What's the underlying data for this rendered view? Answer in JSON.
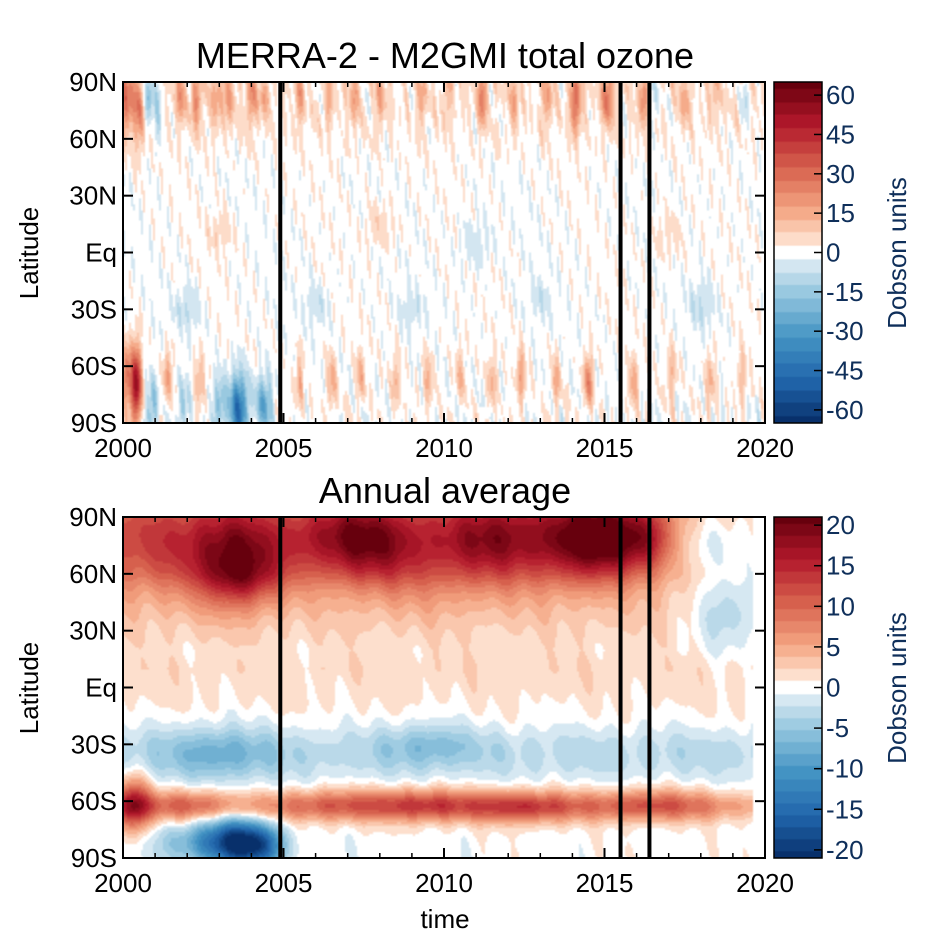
{
  "chart_data": [
    {
      "type": "heatmap",
      "title": "MERRA-2 - M2GMI total ozone",
      "xlabel": "",
      "ylabel": "Latitude",
      "xlim": [
        2000,
        2020
      ],
      "ylim": [
        -90,
        90
      ],
      "x_ticks": [
        "2000",
        "2005",
        "2010",
        "2015",
        "2020"
      ],
      "y_ticks": [
        "90N",
        "60N",
        "30N",
        "Eq",
        "30S",
        "60S",
        "90S"
      ],
      "y_tick_values": [
        90,
        60,
        30,
        0,
        -30,
        -60,
        -90
      ],
      "vertical_lines": [
        2004.9,
        2015.5,
        2016.4
      ],
      "colorbar": {
        "label": "Dobson units",
        "range": [
          -65,
          65
        ],
        "ticks": [
          "60",
          "45",
          "30",
          "15",
          "0",
          "-15",
          "-30",
          "-45",
          "-60"
        ],
        "tick_values": [
          60,
          45,
          30,
          15,
          0,
          -15,
          -30,
          -45,
          -60
        ]
      },
      "features": [
        {
          "t": 2000.1,
          "lat": 80,
          "v": 28,
          "dt": 0.15,
          "dl": 12
        },
        {
          "t": 2000.5,
          "lat": 75,
          "v": 22,
          "dt": 0.12,
          "dl": 14
        },
        {
          "t": 2000.8,
          "lat": 82,
          "v": -22,
          "dt": 0.1,
          "dl": 10
        },
        {
          "t": 2001.1,
          "lat": 78,
          "v": -14,
          "dt": 0.08,
          "dl": 14
        },
        {
          "t": 2001.8,
          "lat": 82,
          "v": 16,
          "dt": 0.12,
          "dl": 10
        },
        {
          "t": 2002.3,
          "lat": 80,
          "v": 20,
          "dt": 0.12,
          "dl": 10
        },
        {
          "t": 2002.9,
          "lat": 80,
          "v": 14,
          "dt": 0.12,
          "dl": 10
        },
        {
          "t": 2003.3,
          "lat": 82,
          "v": 16,
          "dt": 0.12,
          "dl": 10
        },
        {
          "t": 2004.0,
          "lat": 80,
          "v": 18,
          "dt": 0.12,
          "dl": 10
        },
        {
          "t": 2004.4,
          "lat": 82,
          "v": 14,
          "dt": 0.1,
          "dl": 8
        },
        {
          "t": 2005.5,
          "lat": 80,
          "v": 14,
          "dt": 0.1,
          "dl": 10
        },
        {
          "t": 2006.4,
          "lat": 80,
          "v": 12,
          "dt": 0.1,
          "dl": 10
        },
        {
          "t": 2007.2,
          "lat": 82,
          "v": 16,
          "dt": 0.1,
          "dl": 10
        },
        {
          "t": 2008.0,
          "lat": 80,
          "v": 14,
          "dt": 0.1,
          "dl": 10
        },
        {
          "t": 2009.3,
          "lat": 80,
          "v": 12,
          "dt": 0.1,
          "dl": 10
        },
        {
          "t": 2010.1,
          "lat": 82,
          "v": 10,
          "dt": 0.1,
          "dl": 10
        },
        {
          "t": 2011.2,
          "lat": 82,
          "v": 24,
          "dt": 0.1,
          "dl": 10
        },
        {
          "t": 2012.2,
          "lat": 80,
          "v": 14,
          "dt": 0.1,
          "dl": 10
        },
        {
          "t": 2013.2,
          "lat": 80,
          "v": 16,
          "dt": 0.1,
          "dl": 10
        },
        {
          "t": 2014.1,
          "lat": 80,
          "v": 28,
          "dt": 0.12,
          "dl": 12
        },
        {
          "t": 2015.1,
          "lat": 82,
          "v": 28,
          "dt": 0.12,
          "dl": 10
        },
        {
          "t": 2016.2,
          "lat": 80,
          "v": 18,
          "dt": 0.1,
          "dl": 10
        },
        {
          "t": 2016.6,
          "lat": 82,
          "v": -8,
          "dt": 0.1,
          "dl": 10
        },
        {
          "t": 2017.5,
          "lat": 80,
          "v": 14,
          "dt": 0.1,
          "dl": 10
        },
        {
          "t": 2018.4,
          "lat": 82,
          "v": 10,
          "dt": 0.1,
          "dl": 10
        },
        {
          "t": 2019.4,
          "lat": 80,
          "v": -8,
          "dt": 0.1,
          "dl": 10
        },
        {
          "t": 2000.4,
          "lat": -70,
          "v": 55,
          "dt": 0.12,
          "dl": 14
        },
        {
          "t": 2000.1,
          "lat": -65,
          "v": 25,
          "dt": 0.1,
          "dl": 12
        },
        {
          "t": 2000.9,
          "lat": -82,
          "v": -20,
          "dt": 0.12,
          "dl": 10
        },
        {
          "t": 2001.4,
          "lat": -65,
          "v": 16,
          "dt": 0.1,
          "dl": 10
        },
        {
          "t": 2001.9,
          "lat": -80,
          "v": -14,
          "dt": 0.12,
          "dl": 10
        },
        {
          "t": 2002.4,
          "lat": -68,
          "v": 14,
          "dt": 0.1,
          "dl": 10
        },
        {
          "t": 2003.0,
          "lat": -80,
          "v": -18,
          "dt": 0.15,
          "dl": 10
        },
        {
          "t": 2003.6,
          "lat": -82,
          "v": -45,
          "dt": 0.2,
          "dl": 12
        },
        {
          "t": 2004.4,
          "lat": -80,
          "v": -26,
          "dt": 0.18,
          "dl": 10
        },
        {
          "t": 2005.5,
          "lat": -68,
          "v": 14,
          "dt": 0.1,
          "dl": 10
        },
        {
          "t": 2006.5,
          "lat": -68,
          "v": 16,
          "dt": 0.1,
          "dl": 10
        },
        {
          "t": 2007.4,
          "lat": -65,
          "v": 14,
          "dt": 0.1,
          "dl": 10
        },
        {
          "t": 2008.5,
          "lat": -68,
          "v": 12,
          "dt": 0.1,
          "dl": 10
        },
        {
          "t": 2009.5,
          "lat": -68,
          "v": 14,
          "dt": 0.1,
          "dl": 10
        },
        {
          "t": 2010.5,
          "lat": -65,
          "v": 12,
          "dt": 0.1,
          "dl": 10
        },
        {
          "t": 2011.5,
          "lat": -68,
          "v": 14,
          "dt": 0.1,
          "dl": 10
        },
        {
          "t": 2012.4,
          "lat": -65,
          "v": 18,
          "dt": 0.1,
          "dl": 10
        },
        {
          "t": 2013.5,
          "lat": -68,
          "v": 14,
          "dt": 0.1,
          "dl": 10
        },
        {
          "t": 2014.5,
          "lat": -68,
          "v": 24,
          "dt": 0.1,
          "dl": 10
        },
        {
          "t": 2015.9,
          "lat": -68,
          "v": 16,
          "dt": 0.1,
          "dl": 10
        },
        {
          "t": 2017.1,
          "lat": -65,
          "v": 14,
          "dt": 0.1,
          "dl": 10
        },
        {
          "t": 2018.3,
          "lat": -68,
          "v": 14,
          "dt": 0.1,
          "dl": 10
        },
        {
          "t": 2019.3,
          "lat": -65,
          "v": 12,
          "dt": 0.1,
          "dl": 10
        },
        {
          "t": 2002.0,
          "lat": -30,
          "v": -8,
          "dt": 0.3,
          "dl": 8
        },
        {
          "t": 2006.0,
          "lat": -28,
          "v": -6,
          "dt": 0.3,
          "dl": 8
        },
        {
          "t": 2009.0,
          "lat": -30,
          "v": -6,
          "dt": 0.3,
          "dl": 8
        },
        {
          "t": 2013.0,
          "lat": -25,
          "v": -6,
          "dt": 0.3,
          "dl": 8
        },
        {
          "t": 2018.0,
          "lat": -28,
          "v": -8,
          "dt": 0.3,
          "dl": 8
        },
        {
          "t": 2003.0,
          "lat": 10,
          "v": 6,
          "dt": 0.3,
          "dl": 8
        },
        {
          "t": 2008.0,
          "lat": 15,
          "v": 6,
          "dt": 0.3,
          "dl": 8
        },
        {
          "t": 2011.0,
          "lat": 5,
          "v": -6,
          "dt": 0.3,
          "dl": 8
        },
        {
          "t": 2017.0,
          "lat": 10,
          "v": 5,
          "dt": 0.3,
          "dl": 8
        }
      ]
    },
    {
      "type": "heatmap",
      "title": "Annual average",
      "xlabel": "time",
      "ylabel": "Latitude",
      "xlim": [
        2000,
        2020
      ],
      "ylim": [
        -90,
        90
      ],
      "data_xlim": [
        2000,
        2019.6
      ],
      "x_ticks": [
        "2000",
        "2005",
        "2010",
        "2015",
        "2020"
      ],
      "y_ticks": [
        "90N",
        "60N",
        "30N",
        "Eq",
        "30S",
        "60S",
        "90S"
      ],
      "y_tick_values": [
        90,
        60,
        30,
        0,
        -30,
        -60,
        -90
      ],
      "vertical_lines": [
        2004.9,
        2015.5,
        2016.4
      ],
      "colorbar": {
        "label": "Dobson units",
        "range": [
          -21,
          21
        ],
        "ticks": [
          "20",
          "15",
          "10",
          "5",
          "0",
          "-5",
          "-10",
          "-15",
          "-20"
        ],
        "tick_values": [
          20,
          15,
          10,
          5,
          0,
          -5,
          -10,
          -15,
          -20
        ]
      },
      "features": [
        {
          "t": 2001.0,
          "lat": 78,
          "v": 8,
          "dt": 1.6,
          "dl": 18
        },
        {
          "t": 2003.5,
          "lat": 72,
          "v": 12,
          "dt": 1.0,
          "dl": 18
        },
        {
          "t": 2003.7,
          "lat": 58,
          "v": 6,
          "dt": 0.8,
          "dl": 10
        },
        {
          "t": 2006.0,
          "lat": 80,
          "v": 8,
          "dt": 1.2,
          "dl": 15
        },
        {
          "t": 2007.6,
          "lat": 78,
          "v": 10,
          "dt": 1.0,
          "dl": 15
        },
        {
          "t": 2009.5,
          "lat": 75,
          "v": 8,
          "dt": 1.5,
          "dl": 18
        },
        {
          "t": 2011.5,
          "lat": 80,
          "v": 9,
          "dt": 1.0,
          "dl": 15
        },
        {
          "t": 2013.5,
          "lat": 78,
          "v": 10,
          "dt": 1.2,
          "dl": 16
        },
        {
          "t": 2015.0,
          "lat": 80,
          "v": 15,
          "dt": 0.9,
          "dl": 14
        },
        {
          "t": 2016.3,
          "lat": 78,
          "v": 8,
          "dt": 0.6,
          "dl": 12
        },
        {
          "t": 2018.2,
          "lat": 75,
          "v": -4,
          "dt": 0.8,
          "dl": 12
        },
        {
          "t": 2018.8,
          "lat": 40,
          "v": -5,
          "dt": 0.8,
          "dl": 15
        },
        {
          "t": 2000.3,
          "lat": -62,
          "v": 14,
          "dt": 0.4,
          "dl": 10
        },
        {
          "t": 2002.0,
          "lat": -62,
          "v": 7,
          "dt": 1.0,
          "dl": 6
        },
        {
          "t": 2006.5,
          "lat": -62,
          "v": 7,
          "dt": 1.5,
          "dl": 6
        },
        {
          "t": 2009.5,
          "lat": -62,
          "v": 9,
          "dt": 1.2,
          "dl": 6
        },
        {
          "t": 2012.5,
          "lat": -63,
          "v": 10,
          "dt": 1.2,
          "dl": 6
        },
        {
          "t": 2016.5,
          "lat": -62,
          "v": 8,
          "dt": 1.5,
          "dl": 6
        },
        {
          "t": 2003.5,
          "lat": -82,
          "v": -20,
          "dt": 0.7,
          "dl": 9
        },
        {
          "t": 2002.0,
          "lat": -82,
          "v": -6,
          "dt": 0.8,
          "dl": 8
        },
        {
          "t": 2004.4,
          "lat": -84,
          "v": -10,
          "dt": 0.5,
          "dl": 8
        },
        {
          "t": 2003.0,
          "lat": -35,
          "v": -5,
          "dt": 1.2,
          "dl": 10
        },
        {
          "t": 2009.5,
          "lat": -30,
          "v": -4,
          "dt": 1.0,
          "dl": 8
        }
      ]
    }
  ]
}
